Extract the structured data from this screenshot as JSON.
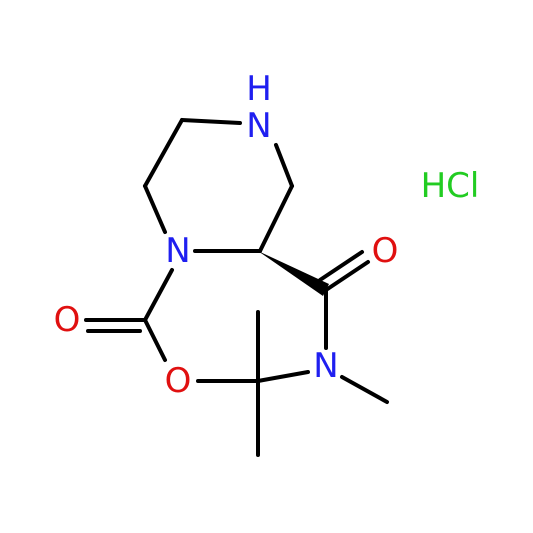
{
  "molecule": {
    "atoms": [
      {
        "label": "H"
      },
      {
        "label": "N"
      },
      {
        "label": "N"
      },
      {
        "label": "O"
      },
      {
        "label": "O"
      },
      {
        "label": "O"
      },
      {
        "label": "N"
      }
    ],
    "salt": "HCl"
  }
}
